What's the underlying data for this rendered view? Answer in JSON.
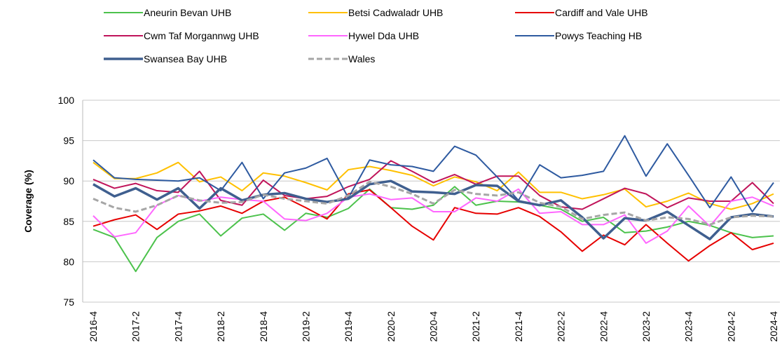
{
  "chart_data": {
    "type": "line",
    "y_label": "Coverage (%)",
    "categories": [
      "2016-4",
      null,
      "2017-2",
      null,
      "2017-4",
      null,
      "2018-2",
      null,
      "2018-4",
      null,
      "2019-2",
      null,
      "2019-4",
      null,
      "2020-2",
      null,
      "2020-4",
      null,
      "2021-2",
      null,
      "2021-4",
      null,
      "2022-2",
      null,
      "2022-4",
      null,
      "2023-2",
      null,
      "2023-4",
      null,
      "2024-2",
      null,
      "2024-4"
    ],
    "ylim": [
      75,
      100
    ],
    "yticks": [
      75,
      80,
      85,
      90,
      95,
      100
    ],
    "grid": true,
    "series": [
      {
        "name": "Aneurin Bevan UHB",
        "color": "#4cc24c",
        "linewidth": 2,
        "values": [
          84.0,
          83.0,
          78.8,
          83.0,
          85.0,
          85.9,
          83.2,
          85.4,
          85.9,
          83.9,
          86.0,
          85.5,
          86.6,
          89.0,
          86.7,
          86.5,
          87.0,
          89.3,
          87.0,
          87.5,
          87.4,
          87.0,
          86.5,
          85.0,
          85.5,
          83.6,
          83.8,
          84.3,
          85.0,
          84.5,
          83.6,
          83.0,
          83.2
        ]
      },
      {
        "name": "Betsi Cadwaladr UHB",
        "color": "#ffc000",
        "linewidth": 2,
        "values": [
          92.3,
          90.3,
          90.3,
          91.0,
          92.3,
          89.9,
          90.5,
          88.8,
          91.0,
          90.6,
          89.8,
          88.9,
          91.4,
          91.8,
          91.3,
          90.7,
          89.4,
          90.5,
          89.9,
          88.8,
          91.1,
          88.6,
          88.6,
          87.8,
          88.3,
          89.0,
          86.8,
          87.5,
          88.5,
          87.2,
          86.5,
          87.2,
          88.4
        ]
      },
      {
        "name": "Cardiff and Vale UHB",
        "color": "#e60000",
        "linewidth": 2,
        "values": [
          84.4,
          85.2,
          85.8,
          84.0,
          85.9,
          86.3,
          86.9,
          86.0,
          87.5,
          88.0,
          86.7,
          85.3,
          88.4,
          88.9,
          86.7,
          84.4,
          82.7,
          86.7,
          86.0,
          85.9,
          86.7,
          85.6,
          83.7,
          81.3,
          83.3,
          82.1,
          84.6,
          82.3,
          80.1,
          82.0,
          83.6,
          81.5,
          82.3
        ]
      },
      {
        "name": "Cwm Taf Morgannwg UHB",
        "color": "#c0145a",
        "linewidth": 2,
        "values": [
          90.2,
          89.1,
          89.7,
          88.8,
          88.6,
          91.2,
          87.6,
          87.0,
          90.1,
          88.2,
          87.8,
          88.1,
          89.3,
          90.2,
          92.5,
          91.2,
          89.8,
          90.8,
          89.6,
          90.6,
          90.6,
          88.2,
          86.8,
          86.5,
          87.8,
          89.1,
          88.4,
          86.7,
          87.9,
          87.5,
          87.5,
          89.8,
          87.2
        ]
      },
      {
        "name": "Hywel Dda UHB",
        "color": "#ff66ff",
        "linewidth": 2,
        "values": [
          85.7,
          83.1,
          83.6,
          87.0,
          88.2,
          87.5,
          88.0,
          87.7,
          87.5,
          85.3,
          85.1,
          86.0,
          88.0,
          88.4,
          87.7,
          87.9,
          86.2,
          86.2,
          87.9,
          87.5,
          89.0,
          86.0,
          86.2,
          84.6,
          84.6,
          85.8,
          82.3,
          83.8,
          86.9,
          84.4,
          87.5,
          88.0,
          86.9
        ]
      },
      {
        "name": "Powys Teaching HB",
        "color": "#2e5aa0",
        "linewidth": 2,
        "values": [
          92.6,
          90.4,
          90.2,
          90.1,
          90.0,
          90.4,
          88.8,
          92.3,
          87.8,
          91.0,
          91.6,
          92.8,
          87.9,
          92.6,
          92.0,
          91.8,
          91.2,
          94.3,
          93.2,
          90.5,
          87.6,
          92.0,
          90.4,
          90.7,
          91.2,
          95.6,
          90.6,
          94.6,
          90.7,
          86.7,
          90.5,
          86.2,
          89.8
        ]
      },
      {
        "name": "Swansea Bay UHB",
        "color": "#3f5f8f",
        "linewidth": 3.5,
        "values": [
          89.6,
          88.1,
          89.1,
          87.7,
          89.1,
          86.6,
          89.1,
          87.6,
          88.3,
          88.5,
          87.8,
          87.4,
          87.8,
          89.6,
          90.0,
          88.7,
          88.6,
          88.4,
          89.5,
          89.4,
          87.5,
          87.0,
          87.6,
          85.5,
          82.9,
          85.4,
          85.1,
          86.2,
          84.5,
          82.8,
          85.5,
          85.9,
          85.6
        ]
      },
      {
        "name": "Wales",
        "color": "#a6a6a6",
        "linewidth": 3,
        "linestyle": "dashed",
        "values": [
          87.8,
          86.7,
          86.2,
          87.0,
          88.2,
          87.6,
          87.3,
          87.4,
          88.3,
          87.8,
          87.5,
          87.2,
          88.2,
          89.9,
          89.3,
          88.4,
          87.2,
          88.9,
          88.4,
          88.2,
          88.6,
          87.3,
          86.8,
          85.3,
          85.8,
          86.1,
          85.1,
          85.5,
          85.3,
          84.6,
          85.5,
          85.7,
          85.6
        ]
      }
    ]
  }
}
